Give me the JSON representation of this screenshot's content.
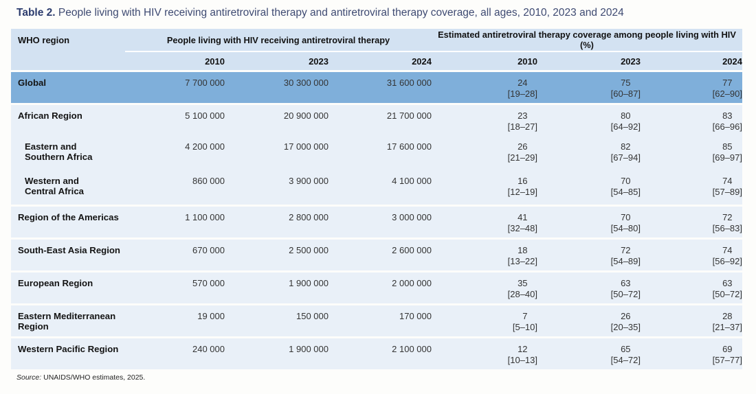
{
  "title": {
    "label": "Table 2.",
    "text": " People living with HIV receiving antiretroviral therapy and antiretroviral therapy coverage, all ages, 2010, 2023 and 2024"
  },
  "table": {
    "region_header": "WHO region",
    "group_headers": {
      "art": "People living with HIV receiving antiretroviral therapy",
      "coverage": "Estimated antiretroviral therapy coverage among people living with HIV (%)"
    },
    "years": [
      "2010",
      "2023",
      "2024"
    ],
    "blocks": [
      {
        "highlight": true,
        "rows": [
          {
            "label_lines": [
              "Global"
            ],
            "art": [
              "7 700 000",
              "30 300 000",
              "31 600 000"
            ],
            "coverage": [
              {
                "value": "24",
                "range": "[19–28]"
              },
              {
                "value": "75",
                "range": "[60–87]"
              },
              {
                "value": "77",
                "range": "[62–90]"
              }
            ]
          }
        ]
      },
      {
        "rows": [
          {
            "label_lines": [
              "African Region"
            ],
            "art": [
              "5 100 000",
              "20 900 000",
              "21 700 000"
            ],
            "coverage": [
              {
                "value": "23",
                "range": "[18–27]"
              },
              {
                "value": "80",
                "range": "[64–92]"
              },
              {
                "value": "83",
                "range": "[66–96]"
              }
            ]
          },
          {
            "indent": true,
            "tall": true,
            "label_lines": [
              "Eastern and",
              "Southern Africa"
            ],
            "art": [
              "4 200 000",
              "17 000 000",
              "17 600 000"
            ],
            "coverage": [
              {
                "value": "26",
                "range": "[21–29]"
              },
              {
                "value": "82",
                "range": "[67–94]"
              },
              {
                "value": "85",
                "range": "[69–97]"
              }
            ]
          },
          {
            "indent": true,
            "tall": true,
            "label_lines": [
              "Western and",
              "Central Africa"
            ],
            "art": [
              "860 000",
              "3 900 000",
              "4 100 000"
            ],
            "coverage": [
              {
                "value": "16",
                "range": "[12–19]"
              },
              {
                "value": "70",
                "range": "[54–85]"
              },
              {
                "value": "74",
                "range": "[57–89]"
              }
            ]
          }
        ]
      },
      {
        "rows": [
          {
            "label_lines": [
              "Region of the Americas"
            ],
            "art": [
              "1 100 000",
              "2 800 000",
              "3 000 000"
            ],
            "coverage": [
              {
                "value": "41",
                "range": "[32–48]"
              },
              {
                "value": "70",
                "range": "[54–80]"
              },
              {
                "value": "72",
                "range": "[56–83]"
              }
            ]
          }
        ]
      },
      {
        "rows": [
          {
            "label_lines": [
              "South-East Asia Region"
            ],
            "art": [
              "670 000",
              "2 500 000",
              "2 600 000"
            ],
            "coverage": [
              {
                "value": "18",
                "range": "[13–22]"
              },
              {
                "value": "72",
                "range": "[54–89]"
              },
              {
                "value": "74",
                "range": "[56–92]"
              }
            ]
          }
        ]
      },
      {
        "rows": [
          {
            "label_lines": [
              "European Region"
            ],
            "art": [
              "570 000",
              "1 900 000",
              "2 000 000"
            ],
            "coverage": [
              {
                "value": "35",
                "range": "[28–40]"
              },
              {
                "value": "63",
                "range": "[50–72]"
              },
              {
                "value": "63",
                "range": "[50–72]"
              }
            ]
          }
        ]
      },
      {
        "rows": [
          {
            "label_lines": [
              "Eastern Mediterranean",
              "Region"
            ],
            "art": [
              "19 000",
              "150 000",
              "170 000"
            ],
            "coverage": [
              {
                "value": "7",
                "range": "[5–10]"
              },
              {
                "value": "26",
                "range": "[20–35]"
              },
              {
                "value": "28",
                "range": "[21–37]"
              }
            ]
          }
        ]
      },
      {
        "rows": [
          {
            "label_lines": [
              "Western Pacific Region"
            ],
            "art": [
              "240 000",
              "1 900 000",
              "2 100 000"
            ],
            "coverage": [
              {
                "value": "12",
                "range": "[10–13]"
              },
              {
                "value": "65",
                "range": "[54–72]"
              },
              {
                "value": "69",
                "range": "[57–77]"
              }
            ]
          }
        ]
      }
    ]
  },
  "source": {
    "prefix": "Source:",
    "text": " UNAIDS/WHO estimates, 2025."
  },
  "colors": {
    "header_bg": "#d3e2f2",
    "highlight_row_bg": "#7fafda",
    "row_bg": "#e9f0f8",
    "title_accent": "#2c3c6e",
    "title_text": "#3e4a72"
  }
}
